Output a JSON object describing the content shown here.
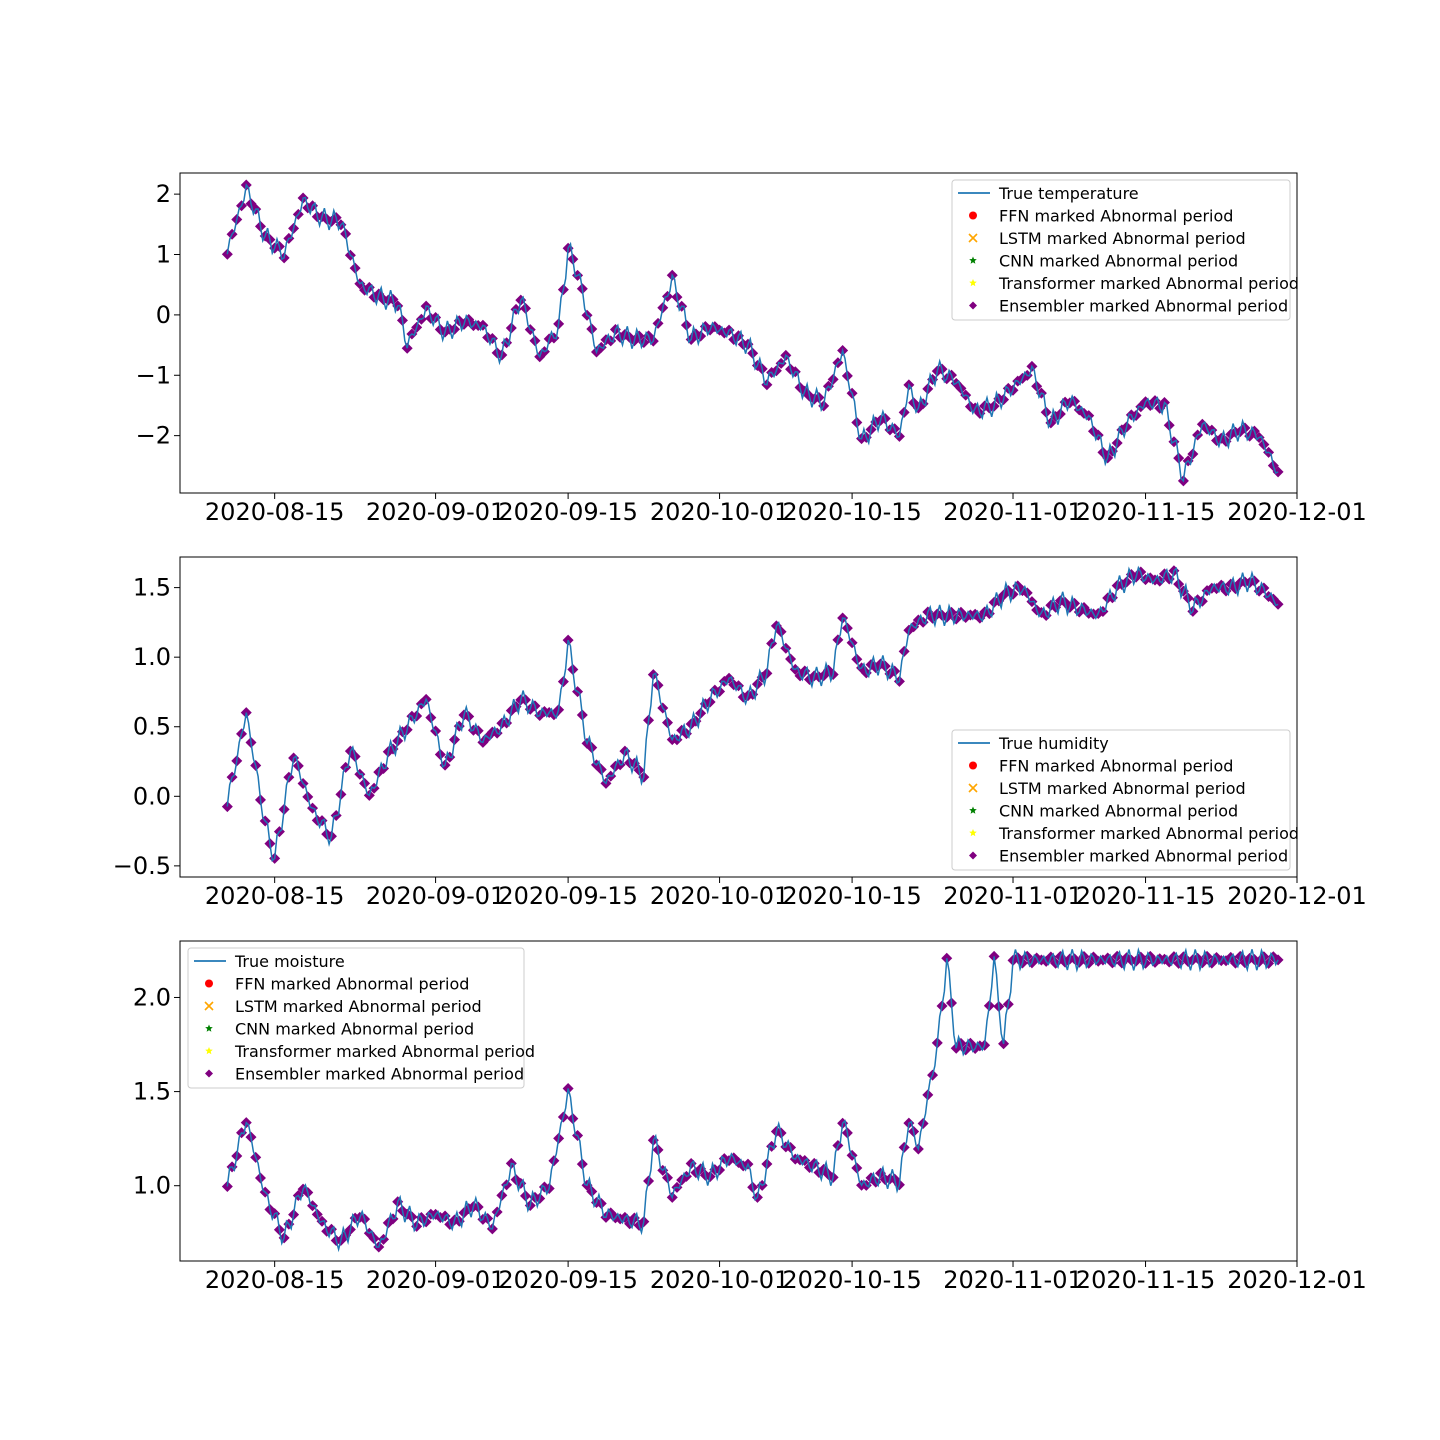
{
  "figure": {
    "x_ticks": [
      "2020-08-15",
      "2020-09-01",
      "2020-09-15",
      "2020-10-01",
      "2020-10-15",
      "2020-11-01",
      "2020-11-15",
      "2020-12-01"
    ],
    "x_tick_dates": [
      "2020-08-15",
      "2020-09-01",
      "2020-09-15",
      "2020-10-01",
      "2020-10-15",
      "2020-11-01",
      "2020-11-15",
      "2020-12-01"
    ],
    "colors": {
      "true_line": "#1f77b4",
      "ffn": "#ff0000",
      "lstm": "#ffa500",
      "cnn": "#008000",
      "transformer": "#ffff00",
      "ensembler": "#800080"
    }
  },
  "chart_data": [
    {
      "type": "line",
      "x_range": [
        "2020-08-05",
        "2020-12-01"
      ],
      "ylim": [
        -2.95,
        2.35
      ],
      "y_ticks": [
        2,
        1,
        0,
        -1,
        -2
      ],
      "y_tick_labels": [
        "2",
        "1",
        "0",
        "−1",
        "−2"
      ],
      "legend_position": "upper right",
      "legend": [
        "True temperature",
        "FFN marked Abnormal period",
        "LSTM marked Abnormal period",
        "CNN marked Abnormal period",
        "Transformer marked Abnormal period",
        "Ensembler marked Abnormal period"
      ],
      "series": [
        {
          "name": "True temperature",
          "points": [
            [
              "2020-08-10",
              1.05
            ],
            [
              "2020-08-12",
              2.1
            ],
            [
              "2020-08-14",
              1.3
            ],
            [
              "2020-08-16",
              1.0
            ],
            [
              "2020-08-18",
              1.9
            ],
            [
              "2020-08-20",
              1.6
            ],
            [
              "2020-08-22",
              1.55
            ],
            [
              "2020-08-24",
              0.5
            ],
            [
              "2020-08-26",
              0.3
            ],
            [
              "2020-08-28",
              0.2
            ],
            [
              "2020-08-29",
              -0.5
            ],
            [
              "2020-08-31",
              0.1
            ],
            [
              "2020-09-02",
              -0.3
            ],
            [
              "2020-09-04",
              -0.1
            ],
            [
              "2020-09-06",
              -0.2
            ],
            [
              "2020-09-08",
              -0.7
            ],
            [
              "2020-09-10",
              0.3
            ],
            [
              "2020-09-12",
              -0.7
            ],
            [
              "2020-09-14",
              -0.2
            ],
            [
              "2020-09-15",
              1.1
            ],
            [
              "2020-09-16",
              0.7
            ],
            [
              "2020-09-18",
              -0.6
            ],
            [
              "2020-09-20",
              -0.3
            ],
            [
              "2020-09-22",
              -0.4
            ],
            [
              "2020-09-24",
              -0.4
            ],
            [
              "2020-09-26",
              0.6
            ],
            [
              "2020-09-28",
              -0.4
            ],
            [
              "2020-09-30",
              -0.2
            ],
            [
              "2020-10-02",
              -0.3
            ],
            [
              "2020-10-04",
              -0.5
            ],
            [
              "2020-10-06",
              -1.1
            ],
            [
              "2020-10-08",
              -0.7
            ],
            [
              "2020-10-10",
              -1.3
            ],
            [
              "2020-10-12",
              -1.45
            ],
            [
              "2020-10-14",
              -0.6
            ],
            [
              "2020-10-16",
              -2.1
            ],
            [
              "2020-10-18",
              -1.7
            ],
            [
              "2020-10-20",
              -2.0
            ],
            [
              "2020-10-21",
              -1.2
            ],
            [
              "2020-10-22",
              -1.6
            ],
            [
              "2020-10-24",
              -0.9
            ],
            [
              "2020-10-26",
              -1.1
            ],
            [
              "2020-10-28",
              -1.6
            ],
            [
              "2020-10-30",
              -1.5
            ],
            [
              "2020-11-01",
              -1.2
            ],
            [
              "2020-11-03",
              -0.9
            ],
            [
              "2020-11-05",
              -1.8
            ],
            [
              "2020-11-07",
              -1.4
            ],
            [
              "2020-11-09",
              -1.7
            ],
            [
              "2020-11-11",
              -2.4
            ],
            [
              "2020-11-13",
              -1.8
            ],
            [
              "2020-11-15",
              -1.45
            ],
            [
              "2020-11-17",
              -1.5
            ],
            [
              "2020-11-19",
              -2.7
            ],
            [
              "2020-11-21",
              -1.8
            ],
            [
              "2020-11-23",
              -2.1
            ],
            [
              "2020-11-25",
              -1.9
            ],
            [
              "2020-11-27",
              -2.0
            ],
            [
              "2020-11-29",
              -2.6
            ]
          ]
        }
      ]
    },
    {
      "type": "line",
      "x_range": [
        "2020-08-05",
        "2020-12-01"
      ],
      "ylim": [
        -0.58,
        1.72
      ],
      "y_ticks": [
        1.5,
        1.0,
        0.5,
        0.0,
        -0.5
      ],
      "y_tick_labels": [
        "1.5",
        "1.0",
        "0.5",
        "0.0",
        "−0.5"
      ],
      "legend_position": "lower right",
      "legend": [
        "True humidity",
        "FFN marked Abnormal period",
        "LSTM marked Abnormal period",
        "CNN marked Abnormal period",
        "Transformer marked Abnormal period",
        "Ensembler marked Abnormal period"
      ],
      "series": [
        {
          "name": "True humidity",
          "points": [
            [
              "2020-08-10",
              -0.05
            ],
            [
              "2020-08-12",
              0.6
            ],
            [
              "2020-08-14",
              -0.2
            ],
            [
              "2020-08-15",
              -0.45
            ],
            [
              "2020-08-17",
              0.3
            ],
            [
              "2020-08-19",
              -0.1
            ],
            [
              "2020-08-21",
              -0.3
            ],
            [
              "2020-08-23",
              0.35
            ],
            [
              "2020-08-25",
              0.0
            ],
            [
              "2020-08-27",
              0.3
            ],
            [
              "2020-08-29",
              0.5
            ],
            [
              "2020-08-31",
              0.7
            ],
            [
              "2020-09-02",
              0.2
            ],
            [
              "2020-09-04",
              0.6
            ],
            [
              "2020-09-06",
              0.4
            ],
            [
              "2020-09-08",
              0.5
            ],
            [
              "2020-09-10",
              0.7
            ],
            [
              "2020-09-12",
              0.6
            ],
            [
              "2020-09-14",
              0.6
            ],
            [
              "2020-09-15",
              1.1
            ],
            [
              "2020-09-17",
              0.4
            ],
            [
              "2020-09-19",
              0.1
            ],
            [
              "2020-09-21",
              0.3
            ],
            [
              "2020-09-23",
              0.15
            ],
            [
              "2020-09-24",
              0.9
            ],
            [
              "2020-09-26",
              0.4
            ],
            [
              "2020-09-28",
              0.5
            ],
            [
              "2020-09-30",
              0.7
            ],
            [
              "2020-10-02",
              0.85
            ],
            [
              "2020-10-04",
              0.7
            ],
            [
              "2020-10-06",
              0.9
            ],
            [
              "2020-10-07",
              1.25
            ],
            [
              "2020-10-09",
              0.9
            ],
            [
              "2020-10-11",
              0.85
            ],
            [
              "2020-10-13",
              0.9
            ],
            [
              "2020-10-14",
              1.3
            ],
            [
              "2020-10-16",
              0.9
            ],
            [
              "2020-10-18",
              0.95
            ],
            [
              "2020-10-20",
              0.85
            ],
            [
              "2020-10-21",
              1.2
            ],
            [
              "2020-10-23",
              1.3
            ],
            [
              "2020-10-25",
              1.3
            ],
            [
              "2020-10-27",
              1.3
            ],
            [
              "2020-10-29",
              1.3
            ],
            [
              "2020-10-31",
              1.45
            ],
            [
              "2020-11-02",
              1.5
            ],
            [
              "2020-11-04",
              1.3
            ],
            [
              "2020-11-06",
              1.4
            ],
            [
              "2020-11-08",
              1.35
            ],
            [
              "2020-11-10",
              1.3
            ],
            [
              "2020-11-12",
              1.5
            ],
            [
              "2020-11-14",
              1.6
            ],
            [
              "2020-11-16",
              1.55
            ],
            [
              "2020-11-18",
              1.6
            ],
            [
              "2020-11-20",
              1.35
            ],
            [
              "2020-11-22",
              1.5
            ],
            [
              "2020-11-24",
              1.5
            ],
            [
              "2020-11-26",
              1.55
            ],
            [
              "2020-11-28",
              1.45
            ],
            [
              "2020-11-29",
              1.38
            ]
          ]
        }
      ]
    },
    {
      "type": "line",
      "x_range": [
        "2020-08-05",
        "2020-12-01"
      ],
      "ylim": [
        0.6,
        2.3
      ],
      "y_ticks": [
        2.0,
        1.5,
        1.0
      ],
      "y_tick_labels": [
        "2.0",
        "1.5",
        "1.0"
      ],
      "legend_position": "upper left",
      "legend": [
        "True moisture",
        "FFN marked Abnormal period",
        "LSTM marked Abnormal period",
        "CNN marked Abnormal period",
        "Transformer marked Abnormal period",
        "Ensembler marked Abnormal period"
      ],
      "series": [
        {
          "name": "True moisture",
          "points": [
            [
              "2020-08-10",
              1.0
            ],
            [
              "2020-08-12",
              1.35
            ],
            [
              "2020-08-14",
              0.95
            ],
            [
              "2020-08-16",
              0.72
            ],
            [
              "2020-08-18",
              1.0
            ],
            [
              "2020-08-20",
              0.8
            ],
            [
              "2020-08-22",
              0.7
            ],
            [
              "2020-08-24",
              0.85
            ],
            [
              "2020-08-26",
              0.67
            ],
            [
              "2020-08-28",
              0.9
            ],
            [
              "2020-08-30",
              0.8
            ],
            [
              "2020-09-01",
              0.85
            ],
            [
              "2020-09-03",
              0.8
            ],
            [
              "2020-09-05",
              0.9
            ],
            [
              "2020-09-07",
              0.78
            ],
            [
              "2020-09-09",
              1.1
            ],
            [
              "2020-09-11",
              0.9
            ],
            [
              "2020-09-13",
              1.0
            ],
            [
              "2020-09-15",
              1.5
            ],
            [
              "2020-09-17",
              1.0
            ],
            [
              "2020-09-19",
              0.85
            ],
            [
              "2020-09-21",
              0.82
            ],
            [
              "2020-09-23",
              0.8
            ],
            [
              "2020-09-24",
              1.25
            ],
            [
              "2020-09-26",
              0.95
            ],
            [
              "2020-09-28",
              1.1
            ],
            [
              "2020-09-30",
              1.05
            ],
            [
              "2020-10-02",
              1.15
            ],
            [
              "2020-10-04",
              1.1
            ],
            [
              "2020-10-05",
              0.92
            ],
            [
              "2020-10-07",
              1.3
            ],
            [
              "2020-10-09",
              1.15
            ],
            [
              "2020-10-11",
              1.1
            ],
            [
              "2020-10-13",
              1.05
            ],
            [
              "2020-10-14",
              1.35
            ],
            [
              "2020-10-16",
              1.0
            ],
            [
              "2020-10-18",
              1.05
            ],
            [
              "2020-10-20",
              1.02
            ],
            [
              "2020-10-21",
              1.35
            ],
            [
              "2020-10-22",
              1.2
            ],
            [
              "2020-10-24",
              1.74
            ],
            [
              "2020-10-25",
              2.2
            ],
            [
              "2020-10-26",
              1.74
            ],
            [
              "2020-10-29",
              1.74
            ],
            [
              "2020-10-30",
              2.2
            ],
            [
              "2020-10-31",
              1.74
            ],
            [
              "2020-11-01",
              2.2
            ],
            [
              "2020-11-29",
              2.2
            ]
          ]
        }
      ]
    }
  ]
}
